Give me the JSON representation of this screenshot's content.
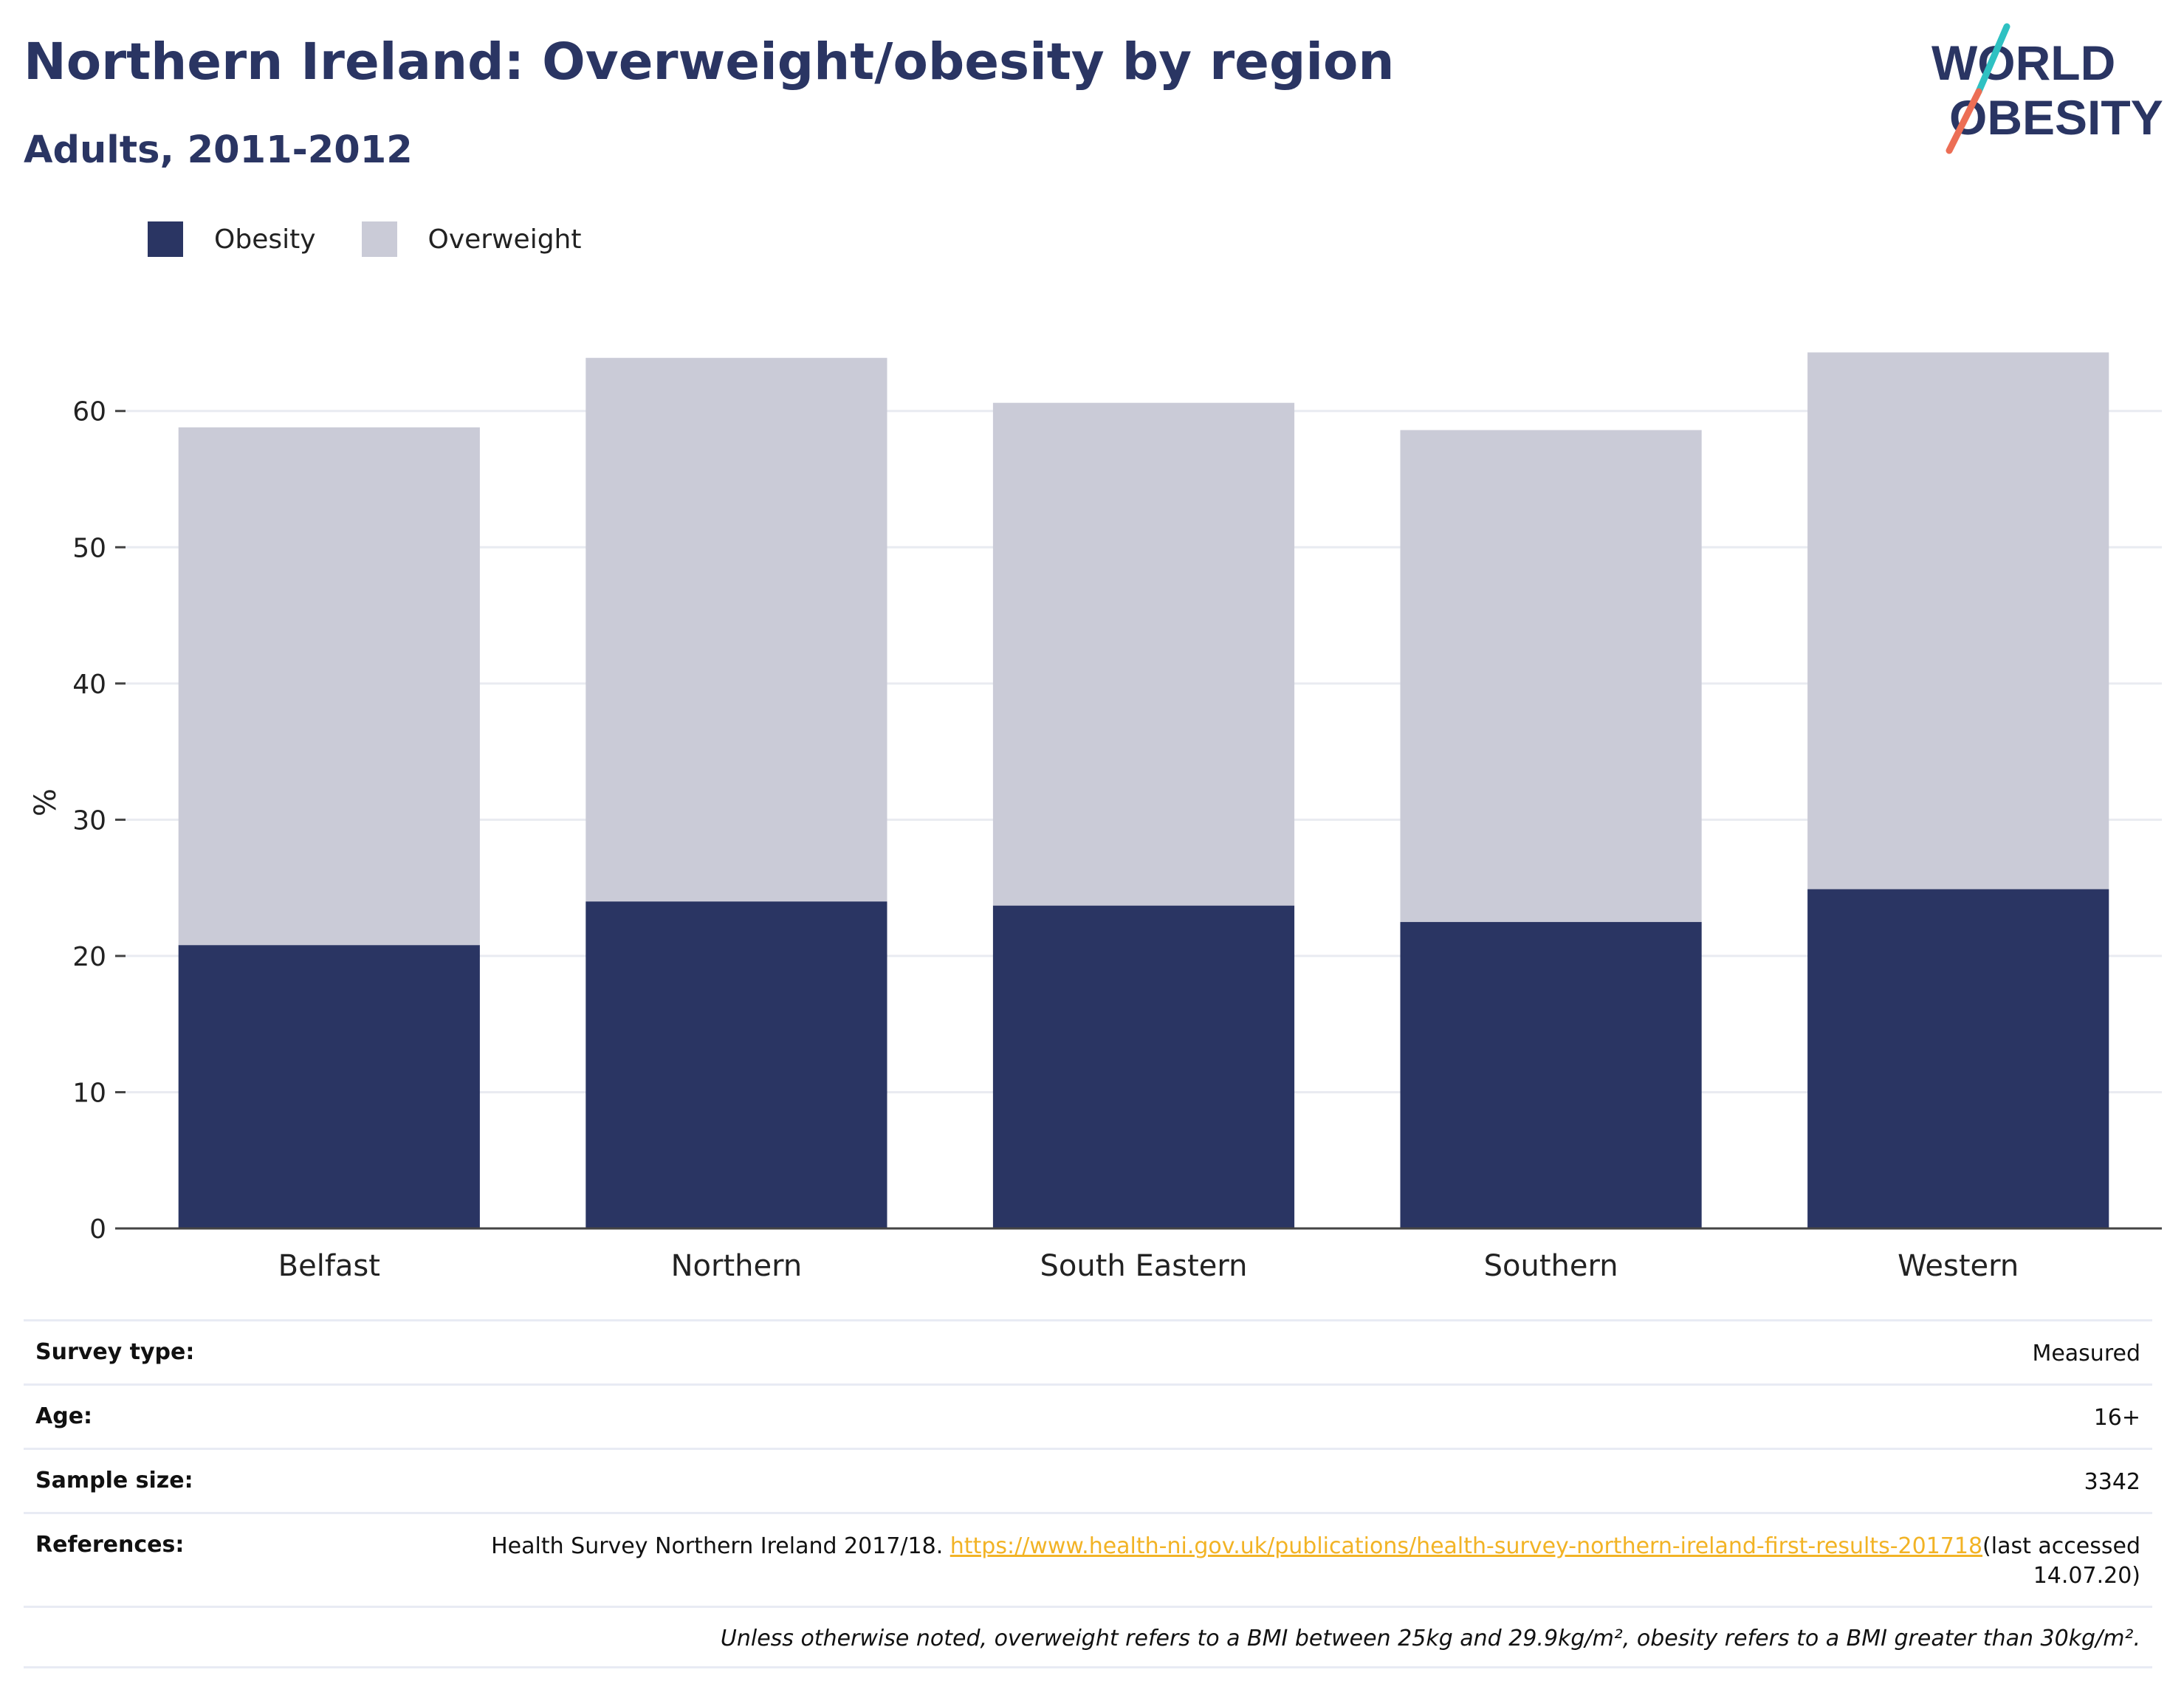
{
  "title": "Northern Ireland: Overweight/obesity by region",
  "subtitle": "Adults, 2011-2012",
  "logo": {
    "line1": "WORLD",
    "line2": "OBESITY"
  },
  "colors": {
    "obesity": "#2a3563",
    "overweight": "#cacbd7",
    "accent_teal": "#2fc1c2",
    "accent_coral": "#ec6e55",
    "link": "#f2b325"
  },
  "chart_data": {
    "type": "bar",
    "stacked": true,
    "categories": [
      "Belfast",
      "Northern",
      "South Eastern",
      "Southern",
      "Western"
    ],
    "series": [
      {
        "name": "Obesity",
        "values": [
          20.8,
          24.0,
          23.7,
          22.5,
          24.9
        ]
      },
      {
        "name": "Overweight",
        "values": [
          38.0,
          39.9,
          36.9,
          36.1,
          39.4
        ]
      }
    ],
    "ylabel": "%",
    "ylim": [
      0,
      70
    ],
    "yticks": [
      0,
      10,
      20,
      30,
      40,
      50,
      60
    ],
    "grid": true,
    "legend_position": "top-left"
  },
  "info": {
    "survey_type": {
      "label": "Survey type:",
      "value": "Measured"
    },
    "age": {
      "label": "Age:",
      "value": "16+"
    },
    "sample_size": {
      "label": "Sample size:",
      "value": "3342"
    },
    "references": {
      "label": "References:",
      "text": "Health Survey Northern Ireland 2017/18. ",
      "link": "https://www.health-ni.gov.uk/publications/health-survey-northern-ireland-first-results-201718",
      "suffix": "(last accessed 14.07.20)"
    },
    "note": "Unless otherwise noted, overweight refers to a BMI between 25kg and 29.9kg/m², obesity refers to a BMI greater than 30kg/m²."
  }
}
